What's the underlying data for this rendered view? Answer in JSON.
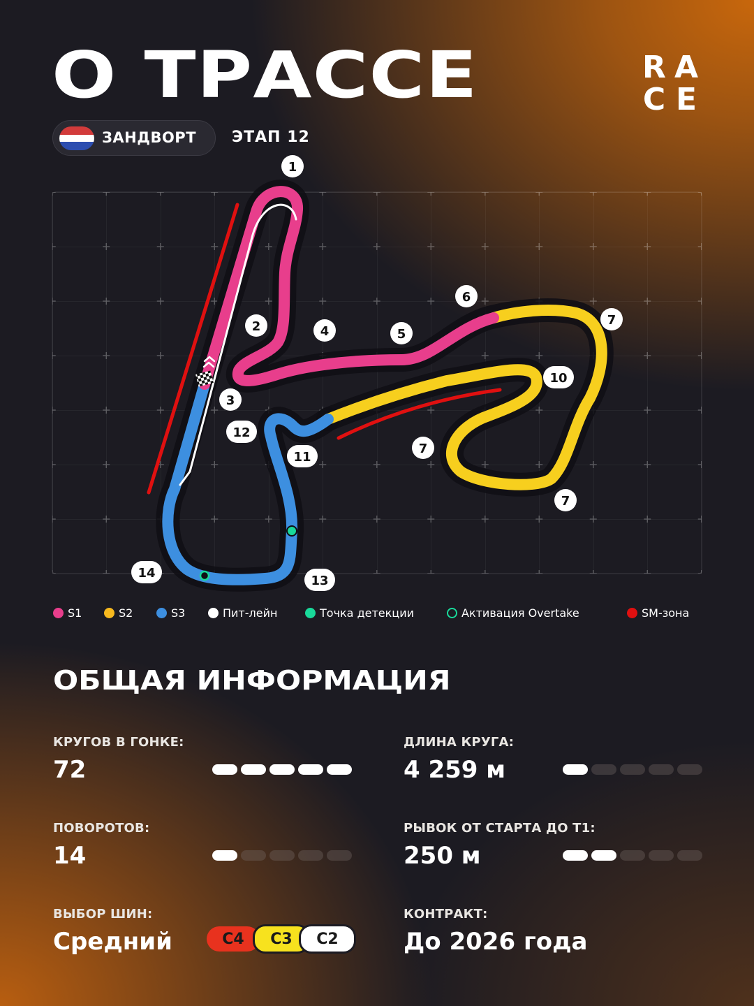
{
  "header": {
    "title": "О ТРАССЕ",
    "logo_letters": [
      "R",
      "A",
      "C",
      "E"
    ],
    "location": "ЗАНДВОРТ",
    "stage": "ЭТАП 12"
  },
  "track": {
    "turn_labels": [
      "1",
      "2",
      "3",
      "4",
      "5",
      "6",
      "7",
      "7",
      "7",
      "10",
      "11",
      "12",
      "13",
      "14"
    ],
    "colors": {
      "s1": "#e83e8c",
      "s2": "#f7cf1e",
      "s3": "#3d8fe0",
      "pit_lane": "#ffffff",
      "detection_point": "#19d99a",
      "overtake_activation": "#19d99a",
      "sm_zone": "#e01010"
    }
  },
  "legend": [
    {
      "label": "S1",
      "icon": "pink-dot"
    },
    {
      "label": "S2",
      "icon": "yellow-dot"
    },
    {
      "label": "S3",
      "icon": "blue-dot"
    },
    {
      "label": "Пит-лейн",
      "icon": "white-dot"
    },
    {
      "label": "Точка детекции",
      "icon": "green-dot"
    },
    {
      "label": "Активация Overtake",
      "icon": "green-ring"
    },
    {
      "label": "SM-зона",
      "icon": "red-dot"
    }
  ],
  "info": {
    "title": "ОБЩАЯ ИНФОРМАЦИЯ",
    "laps": {
      "label": "КРУГОВ В ГОНКЕ:",
      "value": "72",
      "rating": 5
    },
    "length": {
      "label": "ДЛИНА КРУГА:",
      "value": "4 259 м",
      "rating": 1
    },
    "turns": {
      "label": "ПОВОРОТОВ:",
      "value": "14",
      "rating": 1
    },
    "run": {
      "label": "РЫВОК ОТ СТАРТА ДО Т1:",
      "value": "250 м",
      "rating": 2
    },
    "tyres": {
      "label": "ВЫБОР ШИН:",
      "value": "Средний",
      "compounds": [
        "C4",
        "C3",
        "C2"
      ]
    },
    "contract": {
      "label": "КОНТРАКТ:",
      "value": "До 2026 года"
    }
  }
}
